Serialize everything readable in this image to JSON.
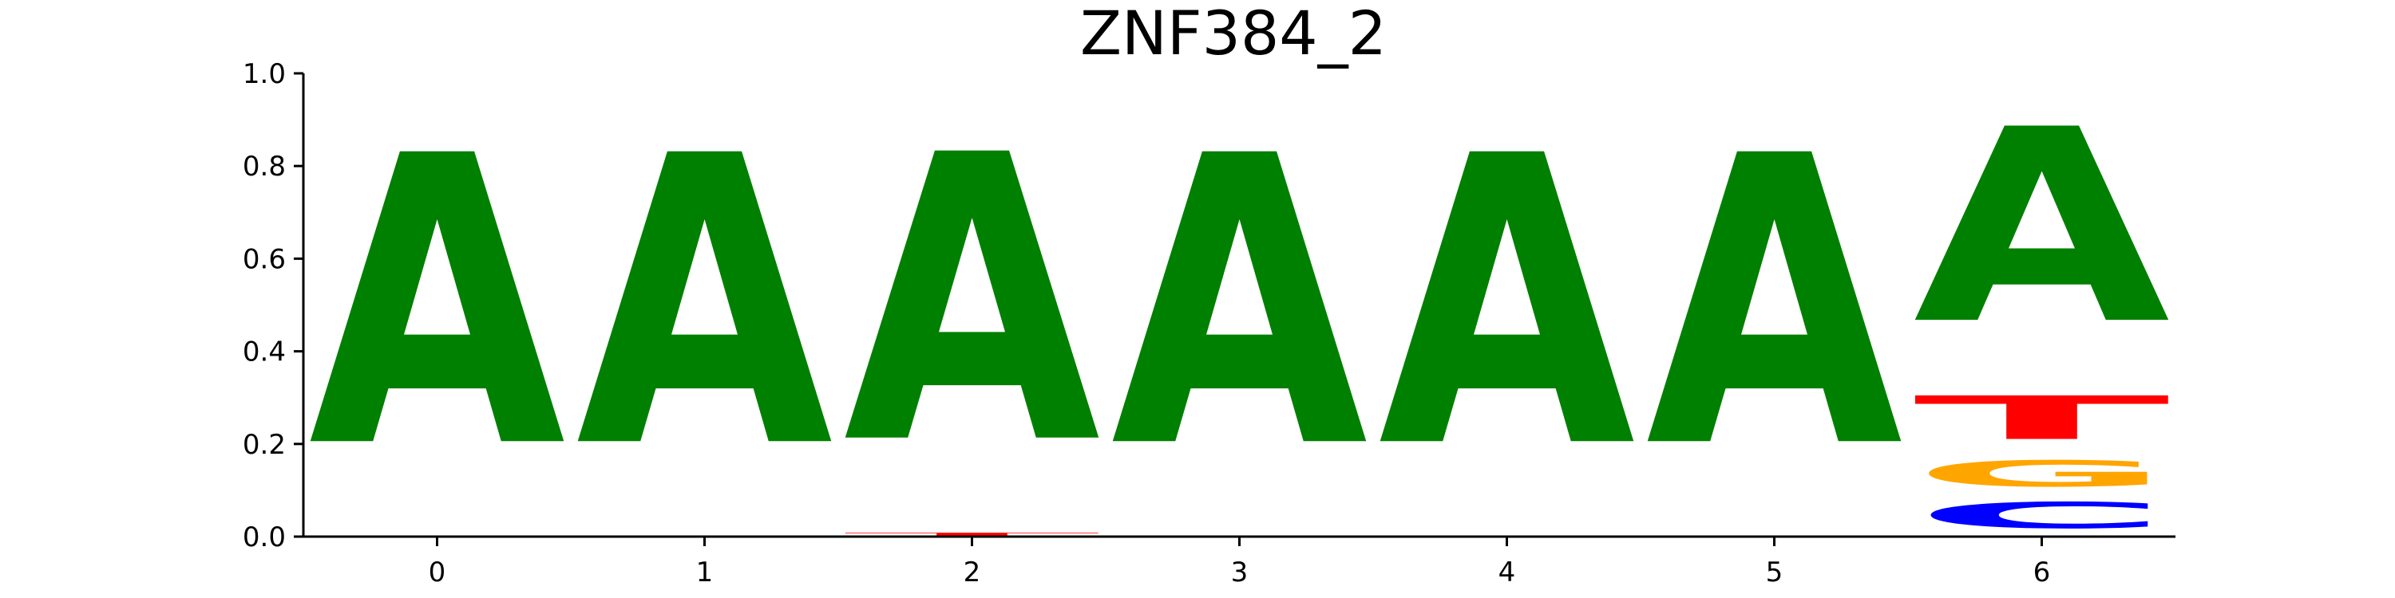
{
  "chart_data": {
    "type": "sequence-logo",
    "title": "ZNF384_2",
    "xlabel": "",
    "ylabel": "",
    "ylim": [
      0.0,
      1.0
    ],
    "xlim": [
      -0.5,
      6.5
    ],
    "x_ticks": [
      "0",
      "1",
      "2",
      "3",
      "4",
      "5",
      "6"
    ],
    "y_ticks": [
      "0.0",
      "0.2",
      "0.4",
      "0.6",
      "0.8",
      "1.0"
    ],
    "grid": false,
    "colors": {
      "A": "#008000",
      "C": "#0000ff",
      "G": "#ffa500",
      "T": "#ff0000"
    },
    "positions": [
      {
        "position": 0,
        "letters": [
          {
            "base": "A",
            "value": 1.0
          }
        ]
      },
      {
        "position": 1,
        "letters": [
          {
            "base": "A",
            "value": 1.0
          }
        ]
      },
      {
        "position": 2,
        "letters": [
          {
            "base": "T",
            "value": 0.01
          },
          {
            "base": "A",
            "value": 0.99
          }
        ]
      },
      {
        "position": 3,
        "letters": [
          {
            "base": "A",
            "value": 1.0
          }
        ]
      },
      {
        "position": 4,
        "letters": [
          {
            "base": "A",
            "value": 1.0
          }
        ]
      },
      {
        "position": 5,
        "letters": [
          {
            "base": "A",
            "value": 1.0
          }
        ]
      },
      {
        "position": 6,
        "letters": [
          {
            "base": "C",
            "value": 0.09
          },
          {
            "base": "G",
            "value": 0.09
          },
          {
            "base": "T",
            "value": 0.15
          },
          {
            "base": "A",
            "value": 0.67
          }
        ]
      }
    ]
  }
}
